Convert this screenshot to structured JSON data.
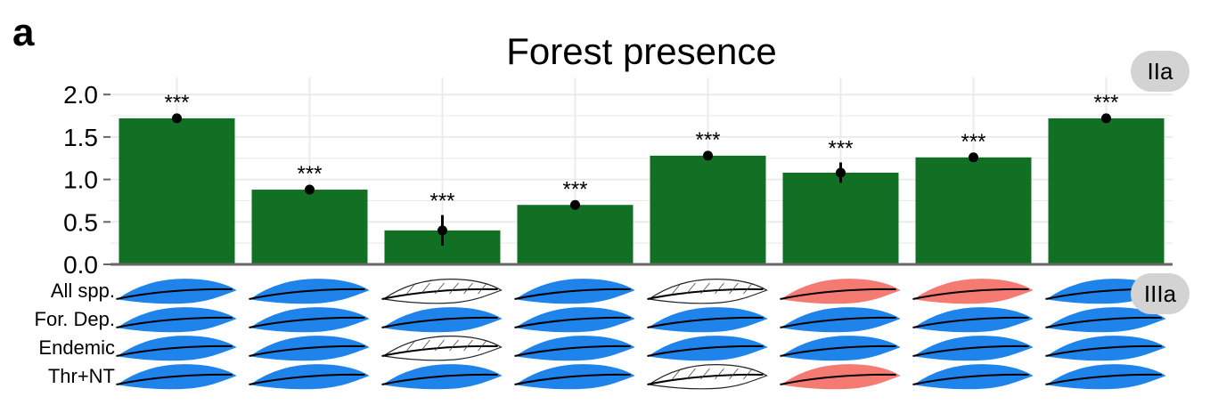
{
  "panel_label": "a",
  "badges": {
    "top": "IIa",
    "bottom": "IIIa"
  },
  "row_labels": [
    "All spp.",
    "For. Dep.",
    "Endemic",
    "Thr+NT"
  ],
  "colors": {
    "bar": "#117024",
    "feather_blue": "#1e83ea",
    "feather_red": "#f47a72",
    "feather_none": "#ffffff",
    "grid": "#ebebeb",
    "axis": "#666666"
  },
  "feather_grid": [
    [
      "blue",
      "blue",
      "none",
      "blue",
      "none",
      "red",
      "red",
      "blue"
    ],
    [
      "blue",
      "blue",
      "blue",
      "blue",
      "blue",
      "blue",
      "blue",
      "blue"
    ],
    [
      "blue",
      "blue",
      "none",
      "blue",
      "blue",
      "blue",
      "blue",
      "blue"
    ],
    [
      "blue",
      "blue",
      "blue",
      "blue",
      "none",
      "red",
      "blue",
      "blue"
    ]
  ],
  "chart_data": {
    "type": "bar",
    "title": "Forest presence",
    "xlabel": "",
    "ylabel": "",
    "ylim": [
      0,
      2.2
    ],
    "yticks": [
      "0.0",
      "0.5",
      "1.0",
      "1.5",
      "2.0"
    ],
    "grid": true,
    "values": [
      1.72,
      0.88,
      0.4,
      0.7,
      1.28,
      1.08,
      1.26,
      1.72
    ],
    "point_estimates": [
      1.72,
      0.88,
      0.4,
      0.7,
      1.28,
      1.08,
      1.26,
      1.72
    ],
    "error_low": [
      1.7,
      0.86,
      0.22,
      0.68,
      1.26,
      0.96,
      1.24,
      1.7
    ],
    "error_high": [
      1.74,
      0.9,
      0.58,
      0.72,
      1.3,
      1.2,
      1.28,
      1.74
    ],
    "significance": [
      "***",
      "***",
      "***",
      "***",
      "***",
      "***",
      "***",
      "***"
    ]
  }
}
